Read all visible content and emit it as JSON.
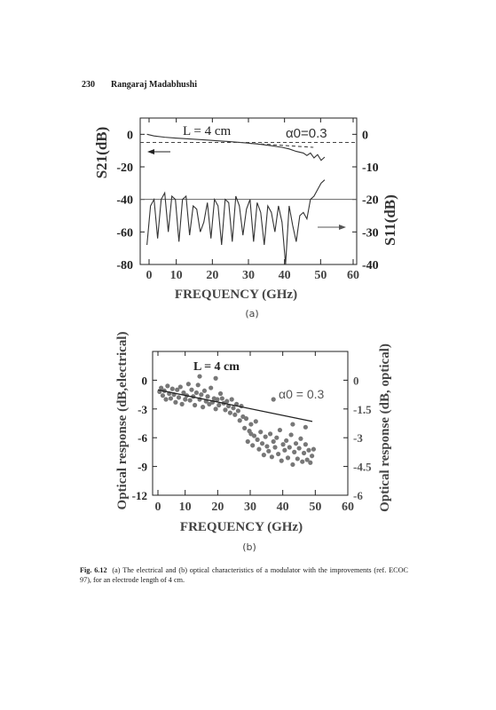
{
  "header": {
    "page_number": "230",
    "author": "Rangaraj Madabhushi"
  },
  "figure_a": {
    "panel_label": "(a)",
    "xlabel": "FREQUENCY (GHz)",
    "ylabel_left": "S21(dB)",
    "ylabel_right": "S11(dB)",
    "annotation_length": "L = 4 cm",
    "annotation_alpha": "α0=0.3",
    "left_ticks": [
      "0",
      "-20",
      "-40",
      "-60",
      "-80"
    ],
    "right_ticks": [
      "0",
      "-10",
      "-20",
      "-30",
      "-40"
    ],
    "x_ticks": [
      "0",
      "10",
      "20",
      "30",
      "40",
      "50",
      "60"
    ]
  },
  "figure_b": {
    "panel_label": "(b)",
    "xlabel": "FREQUENCY (GHz)",
    "ylabel_left": "Optical response (dB,electrical)",
    "ylabel_right": "Optical response (dB, optical)",
    "annotation_length": "L = 4 cm",
    "annotation_alpha": "α0 = 0.3",
    "left_ticks": [
      "0",
      "-3",
      "-6",
      "-9",
      "-12"
    ],
    "right_ticks": [
      "0",
      "-1.5",
      "-3",
      "-4.5",
      "-6"
    ],
    "x_ticks": [
      "0",
      "10",
      "20",
      "30",
      "40",
      "50",
      "60"
    ]
  },
  "caption": {
    "label": "Fig. 6.12",
    "text": "(a) The electrical and (b) optical characteristics of a modulator with the improvements (ref. ECOC 97), for an electrode length of 4 cm."
  },
  "chart_data": [
    {
      "type": "line",
      "panel": "a",
      "x_range": [
        0,
        60
      ],
      "y_range_left": [
        -80,
        10
      ],
      "y_range_right": [
        -40,
        5
      ],
      "series": [
        {
          "name": "S21",
          "axis": "left",
          "x": [
            0,
            2,
            5,
            8,
            10,
            13,
            16,
            20,
            24,
            28,
            32,
            35,
            38,
            40,
            42,
            44,
            45,
            46,
            47,
            48,
            49,
            50
          ],
          "y": [
            0,
            -1,
            -1.8,
            -2.3,
            -2.6,
            -3,
            -3.4,
            -4,
            -4.6,
            -5.3,
            -6.2,
            -7,
            -8,
            -9,
            -10.5,
            -11.5,
            -13,
            -11.5,
            -14.5,
            -12.5,
            -16,
            -14
          ]
        },
        {
          "name": "S21 reference",
          "axis": "left",
          "x": [
            0,
            60
          ],
          "y": [
            -5,
            -5
          ]
        },
        {
          "name": "S21 fit",
          "axis": "left",
          "x": [
            30,
            48
          ],
          "y": [
            -5.5,
            -8
          ]
        },
        {
          "axis": "left",
          "x": [
            0,
            60
          ],
          "y": [
            -40,
            -40
          ]
        },
        {
          "name": "S11",
          "axis": "right",
          "x": [
            0,
            1,
            2,
            3,
            4,
            5,
            6,
            7,
            8,
            9,
            10,
            11,
            12,
            13,
            14,
            15,
            16,
            17,
            18,
            19,
            20,
            21,
            22,
            23,
            24,
            25,
            26,
            27,
            28,
            29,
            30,
            31,
            32,
            33,
            34,
            35,
            36,
            37,
            38,
            39,
            40,
            41,
            42,
            43,
            44,
            45,
            46,
            47,
            48,
            49,
            50
          ],
          "y": [
            -34,
            -22,
            -20,
            -32,
            -20,
            -18,
            -30,
            -19,
            -20,
            -33,
            -20,
            -19,
            -31,
            -22,
            -23,
            -30,
            -27,
            -21,
            -32,
            -20,
            -22,
            -34,
            -20,
            -21,
            -33,
            -19,
            -22,
            -31,
            -23,
            -20,
            -33,
            -21,
            -24,
            -34,
            -22,
            -24,
            -30,
            -22,
            -27,
            -40,
            -22,
            -28,
            -33,
            -25,
            -24,
            -26,
            -20,
            -19,
            -17,
            -15,
            -14
          ]
        }
      ],
      "arrows": [
        {
          "points_to": "left axis",
          "x": 5,
          "y": -13
        },
        {
          "points_to": "right axis",
          "x": 52,
          "y": -20
        }
      ]
    },
    {
      "type": "scatter",
      "panel": "b",
      "x_range": [
        0,
        60
      ],
      "y_range_left": [
        -12,
        3
      ],
      "y_range_right": [
        -6,
        1.5
      ],
      "fit_line": {
        "x": [
          0,
          48
        ],
        "y": [
          -1,
          -4.3
        ]
      },
      "points": [
        [
          0.5,
          -1.2
        ],
        [
          1,
          -0.8
        ],
        [
          1.5,
          -1.6
        ],
        [
          2,
          -1.1
        ],
        [
          2.5,
          -2.0
        ],
        [
          3,
          -0.6
        ],
        [
          3.5,
          -1.4
        ],
        [
          4,
          -1.9
        ],
        [
          4.5,
          -0.9
        ],
        [
          5,
          -1.5
        ],
        [
          5.5,
          -2.3
        ],
        [
          6,
          -1.0
        ],
        [
          6.5,
          -1.8
        ],
        [
          7,
          -0.7
        ],
        [
          7.5,
          -2.5
        ],
        [
          8,
          -1.3
        ],
        [
          8.5,
          -2.0
        ],
        [
          9,
          -1.6
        ],
        [
          9.5,
          -0.4
        ],
        [
          10,
          -2.1
        ],
        [
          10.5,
          -1.0
        ],
        [
          11,
          -1.7
        ],
        [
          11.5,
          -2.6
        ],
        [
          12,
          -1.3
        ],
        [
          12.5,
          -0.5
        ],
        [
          13,
          -2.0
        ],
        [
          13.5,
          -1.5
        ],
        [
          14,
          -2.8
        ],
        [
          14.5,
          -1.1
        ],
        [
          15,
          -2.2
        ],
        [
          15.5,
          -1.7
        ],
        [
          16,
          -2.5
        ],
        [
          16.5,
          -0.8
        ],
        [
          17,
          -2.3
        ],
        [
          17.5,
          -1.9
        ],
        [
          18,
          -3.0
        ],
        [
          18.5,
          -2.0
        ],
        [
          19,
          -2.6
        ],
        [
          19.5,
          -1.4
        ],
        [
          20,
          -1.9
        ],
        [
          20.5,
          -2.4
        ],
        [
          21,
          -3.1
        ],
        [
          21.5,
          -2.2
        ],
        [
          22,
          -2.7
        ],
        [
          22.5,
          -3.4
        ],
        [
          23,
          -2.0
        ],
        [
          23.5,
          -2.9
        ],
        [
          24,
          -3.6
        ],
        [
          24.5,
          -2.5
        ],
        [
          25,
          -3.2
        ],
        [
          25.5,
          -4.2
        ],
        [
          26,
          -2.7
        ],
        [
          26.5,
          -3.8
        ],
        [
          27,
          -5.0
        ],
        [
          27.5,
          -4.0
        ],
        [
          28,
          -6.4
        ],
        [
          28.5,
          -5.3
        ],
        [
          29,
          -4.6
        ],
        [
          29.5,
          -6.8
        ],
        [
          30,
          -5.8
        ],
        [
          30.5,
          -4.3
        ],
        [
          31,
          -6.2
        ],
        [
          31.5,
          -7.2
        ],
        [
          32,
          -5.4
        ],
        [
          32.5,
          -6.6
        ],
        [
          33,
          -7.8
        ],
        [
          33.5,
          -5.9
        ],
        [
          34,
          -6.9
        ],
        [
          34.5,
          -7.4
        ],
        [
          35,
          -5.6
        ],
        [
          35.5,
          -8.0
        ],
        [
          36,
          -6.4
        ],
        [
          36.5,
          -7.0
        ],
        [
          37,
          -6.0
        ],
        [
          37.5,
          -7.7
        ],
        [
          38,
          -5.2
        ],
        [
          38.5,
          -8.4
        ],
        [
          39,
          -6.7
        ],
        [
          39.5,
          -7.3
        ],
        [
          40,
          -6.3
        ],
        [
          40.5,
          -8.1
        ],
        [
          41,
          -7.0
        ],
        [
          41.5,
          -5.7
        ],
        [
          42,
          -8.8
        ],
        [
          42.5,
          -7.5
        ],
        [
          43,
          -6.6
        ],
        [
          43.5,
          -8.2
        ],
        [
          44,
          -7.1
        ],
        [
          44.5,
          -6.1
        ],
        [
          45,
          -8.5
        ],
        [
          45.5,
          -7.6
        ],
        [
          46,
          -6.7
        ],
        [
          46.5,
          -8.3
        ],
        [
          47,
          -7.3
        ],
        [
          47.5,
          -8.6
        ],
        [
          48,
          -7.9
        ],
        [
          48.5,
          -7.2
        ],
        [
          18,
          0.2
        ],
        [
          13,
          0.4
        ],
        [
          36,
          -2.0
        ],
        [
          29,
          -5.6
        ],
        [
          42,
          -4.6
        ],
        [
          46,
          -4.9
        ]
      ]
    }
  ]
}
